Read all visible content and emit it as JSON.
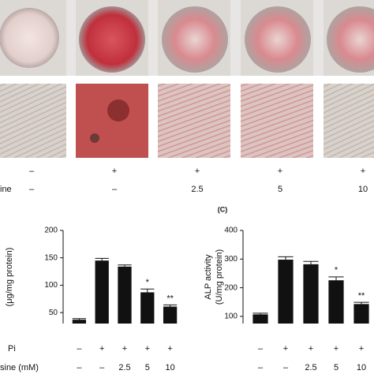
{
  "panel_label": "(C)",
  "top_treatments": {
    "row_label": "ine",
    "pi": [
      "–",
      "+",
      "+",
      "+",
      "+"
    ],
    "dose": [
      "–",
      "–",
      "2.5",
      "5",
      "10"
    ]
  },
  "chart_data": [
    {
      "type": "bar",
      "ylabel": "(μg/mg protein)",
      "values": [
        37,
        145,
        134,
        87,
        61
      ],
      "errors": [
        2,
        4,
        3,
        6,
        3
      ],
      "significance": [
        null,
        null,
        null,
        "*",
        "**"
      ],
      "color": "#111111",
      "ylim": [
        30,
        200
      ],
      "yticks": [
        50,
        100,
        150,
        200
      ],
      "rows": [
        {
          "label": "Pi",
          "values": [
            "–",
            "+",
            "+",
            "+",
            "+"
          ]
        },
        {
          "label": "sine (mM)",
          "values": [
            "–",
            "–",
            "2.5",
            "5",
            "10"
          ]
        }
      ]
    },
    {
      "type": "bar",
      "ylabel": "ALP activity",
      "ylabel2": "(U/mg protein)",
      "values": [
        107,
        298,
        282,
        226,
        143
      ],
      "errors": [
        4,
        10,
        10,
        12,
        6
      ],
      "significance": [
        null,
        null,
        null,
        "*",
        "**"
      ],
      "color": "#111111",
      "ylim": [
        75,
        400
      ],
      "yticks": [
        100,
        200,
        300,
        400
      ],
      "rows": [
        {
          "values": [
            "–",
            "+",
            "+",
            "+",
            "+"
          ]
        },
        {
          "values": [
            "–",
            "–",
            "2.5",
            "5",
            "10"
          ]
        }
      ]
    }
  ]
}
